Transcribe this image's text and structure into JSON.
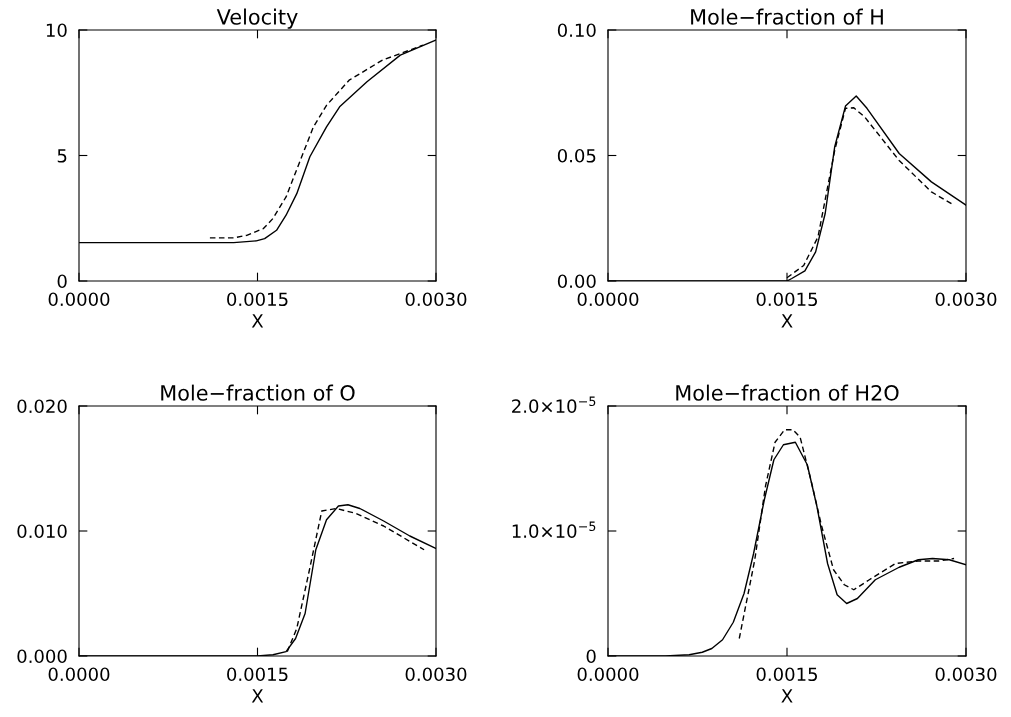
{
  "chart_data": [
    {
      "type": "line",
      "title": "Velocity",
      "xlabel": "X",
      "xlim": [
        0,
        0.003
      ],
      "xticks": [
        {
          "value": 0,
          "label": "0.0000"
        },
        {
          "value": 0.0015,
          "label": "0.0015"
        },
        {
          "value": 0.003,
          "label": "0.0030"
        }
      ],
      "ylim": [
        0,
        10
      ],
      "yticks": [
        0,
        5,
        10
      ],
      "series": [
        {
          "color": "#000000",
          "line_style": "solid",
          "x": [
            0,
            0.0013,
            0.00149,
            0.00156,
            0.00166,
            0.00174,
            0.00183,
            0.00194,
            0.00208,
            0.00219,
            0.00242,
            0.0027,
            0.003
          ],
          "values": [
            1.53,
            1.53,
            1.6,
            1.69,
            2.02,
            2.62,
            3.48,
            4.95,
            6.14,
            6.94,
            7.94,
            9.0,
            9.6
          ]
        },
        {
          "color": "#000000",
          "line_style": "dashed",
          "x": [
            0.0011,
            0.0013,
            0.00141,
            0.00155,
            0.00163,
            0.00174,
            0.00186,
            0.00197,
            0.00208,
            0.00227,
            0.00255,
            0.00278,
            0.00289
          ],
          "values": [
            1.72,
            1.72,
            1.82,
            2.09,
            2.49,
            3.35,
            4.81,
            6.14,
            7.0,
            8.0,
            8.8,
            9.2,
            9.4
          ]
        }
      ]
    },
    {
      "type": "line",
      "title": "Mole−fraction of H",
      "xlabel": "X",
      "xlim": [
        0,
        0.003
      ],
      "xticks": [
        {
          "value": 0,
          "label": "0.0000"
        },
        {
          "value": 0.0015,
          "label": "0.0015"
        },
        {
          "value": 0.003,
          "label": "0.0030"
        }
      ],
      "ylim": [
        0,
        0.1
      ],
      "yticks": [
        {
          "value": 0,
          "label": "0.00"
        },
        {
          "value": 0.05,
          "label": "0.05"
        },
        {
          "value": 0.1,
          "label": "0.10"
        }
      ],
      "series": [
        {
          "color": "#000000",
          "line_style": "solid",
          "x": [
            0,
            0.0015,
            0.00154,
            0.00165,
            0.00174,
            0.00182,
            0.0019,
            0.00199,
            0.00208,
            0.00217,
            0.00244,
            0.00271,
            0.003
          ],
          "values": [
            0,
            0,
            0.001,
            0.004,
            0.0116,
            0.0269,
            0.0535,
            0.0697,
            0.0737,
            0.0688,
            0.0508,
            0.0395,
            0.0302
          ]
        },
        {
          "color": "#000000",
          "line_style": "dashed",
          "x": [
            0.0015,
            0.00164,
            0.00176,
            0.0019,
            0.00199,
            0.00206,
            0.00215,
            0.00244,
            0.00271,
            0.0029
          ],
          "values": [
            0.0013,
            0.0062,
            0.0176,
            0.0521,
            0.0688,
            0.069,
            0.0654,
            0.048,
            0.0355,
            0.0302
          ]
        }
      ]
    },
    {
      "type": "line",
      "title": "Mole−fraction of O",
      "xlabel": "X",
      "xlim": [
        0,
        0.003
      ],
      "xticks": [
        {
          "value": 0,
          "label": "0.0000"
        },
        {
          "value": 0.0015,
          "label": "0.0015"
        },
        {
          "value": 0.003,
          "label": "0.0030"
        }
      ],
      "ylim": [
        0,
        0.02
      ],
      "yticks": [
        {
          "value": 0,
          "label": "0.000"
        },
        {
          "value": 0.01,
          "label": "0.010"
        },
        {
          "value": 0.02,
          "label": "0.020"
        }
      ],
      "series": [
        {
          "color": "#000000",
          "line_style": "solid",
          "x": [
            0,
            0.0015,
            0.00163,
            0.00174,
            0.00182,
            0.0019,
            0.00199,
            0.00208,
            0.00218,
            0.00226,
            0.00236,
            0.00256,
            0.00278,
            0.003
          ],
          "values": [
            0,
            0,
            0.0001,
            0.00035,
            0.0014,
            0.0034,
            0.0085,
            0.0109,
            0.012,
            0.0121,
            0.0118,
            0.0108,
            0.0096,
            0.0086
          ]
        },
        {
          "color": "#000000",
          "line_style": "dashed",
          "x": [
            0.00175,
            0.00183,
            0.00193,
            0.00204,
            0.00216,
            0.00233,
            0.00256,
            0.0029
          ],
          "values": [
            0.00035,
            0.0022,
            0.0066,
            0.0116,
            0.0118,
            0.0114,
            0.0104,
            0.0085
          ]
        }
      ]
    },
    {
      "type": "line",
      "title": "Mole−fraction of H2O",
      "xlabel": "X",
      "xlim": [
        0,
        0.003
      ],
      "xticks": [
        {
          "value": 0,
          "label": "0.0000"
        },
        {
          "value": 0.0015,
          "label": "0.0015"
        },
        {
          "value": 0.003,
          "label": "0.0030"
        }
      ],
      "ylim": [
        0,
        2e-05
      ],
      "yticks": [
        0,
        {
          "value": 1e-05,
          "label": "1.0×10$^{−5}$"
        },
        {
          "value": 2e-05,
          "label": "2.0×10$^{−5}$"
        }
      ],
      "series": [
        {
          "color": "#000000",
          "line_style": "solid",
          "x": [
            0,
            0.00048,
            0.00068,
            0.00079,
            0.00087,
            0.00096,
            0.00105,
            0.00114,
            0.00122,
            0.00131,
            0.00139,
            0.00147,
            0.00157,
            0.00167,
            0.00175,
            0.00184,
            0.00192,
            0.002,
            0.00209,
            0.00224,
            0.00244,
            0.0026,
            0.00272,
            0.00286,
            0.003
          ],
          "values": [
            0,
            0,
            1e-07,
            3e-07,
            6e-07,
            1.3e-06,
            2.7e-06,
            5e-06,
            8.2e-06,
            1.25e-05,
            1.57e-05,
            1.69e-05,
            1.71e-05,
            1.53e-05,
            1.2e-05,
            7.4e-06,
            4.9e-06,
            4.2e-06,
            4.6e-06,
            6.1e-06,
            7.1e-06,
            7.7e-06,
            7.8e-06,
            7.7e-06,
            7.3e-06
          ]
        },
        {
          "color": "#000000",
          "line_style": "dashed",
          "x": [
            0.0011,
            0.00123,
            0.00132,
            0.0014,
            0.00148,
            0.00155,
            0.00161,
            0.0017,
            0.00179,
            0.00189,
            0.00198,
            0.00206,
            0.00219,
            0.00241,
            0.0026,
            0.00277,
            0.0029
          ],
          "values": [
            1.4e-06,
            7.7e-06,
            1.36e-05,
            1.71e-05,
            1.81e-05,
            1.81e-05,
            1.75e-05,
            1.41e-05,
            1.04e-05,
            6.9e-06,
            5.7e-06,
            5.3e-06,
            6.1e-06,
            7.4e-06,
            7.6e-06,
            7.6e-06,
            7.8e-06
          ]
        }
      ]
    }
  ]
}
